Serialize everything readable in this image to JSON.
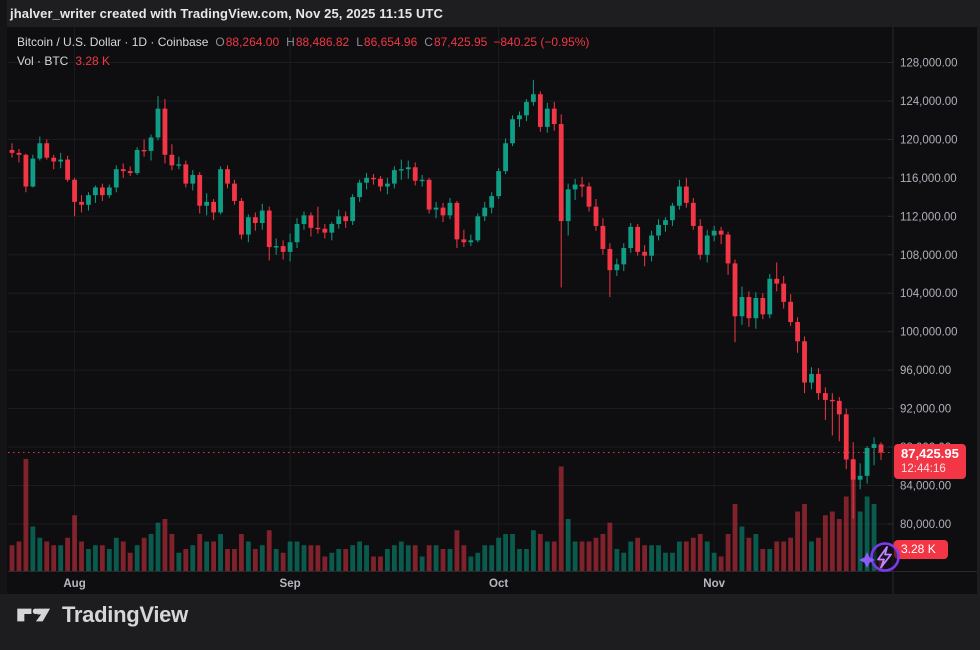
{
  "attribution": "jhalver_writer created with TradingView.com, Nov 25, 2025 11:15 UTC",
  "header": {
    "title": "Bitcoin / U.S. Dollar · 1D · Coinbase",
    "ohlc": [
      {
        "label": "O",
        "value": "88,264.00"
      },
      {
        "label": "H",
        "value": "88,486.82"
      },
      {
        "label": "L",
        "value": "86,654.96"
      },
      {
        "label": "C",
        "value": "87,425.95"
      }
    ],
    "change": "−840.25 (−0.95%)",
    "volume_label": "Vol · BTC",
    "volume_value": "3.28 K"
  },
  "price_scale": {
    "last_price": "87,425.95",
    "countdown": "12:44:16",
    "volume_badge": "3.28 K"
  },
  "time_axis_months": [
    "Aug",
    "Sep",
    "Oct",
    "Nov"
  ],
  "watermark_logo": "TradingView",
  "colors": {
    "up": "#0f9d85",
    "down": "#f23645",
    "vol_up": "rgba(8,153,129,0.55)",
    "vol_down": "rgba(242,54,69,0.5)",
    "grid": "#1c1c1f",
    "separator": "#2a2a2e",
    "axis_text": "#aeb1ba",
    "label_bg": "#f23645",
    "pane_bg": "#0e0e10"
  },
  "chart_data": {
    "type": "candlestick",
    "symbol": "Bitcoin / U.S. Dollar",
    "exchange": "Coinbase",
    "interval": "1D",
    "start_date": "2025-07-23",
    "end_date": "2025-11-25",
    "last_close": 87425.95,
    "y_ticks": [
      128000,
      124000,
      120000,
      116000,
      112000,
      108000,
      104000,
      100000,
      96000,
      92000,
      88000,
      84000,
      80000
    ],
    "month_ticks": [
      {
        "label": "Aug",
        "index": 9
      },
      {
        "label": "Sep",
        "index": 40
      },
      {
        "label": "Oct",
        "index": 70
      },
      {
        "label": "Nov",
        "index": 101
      }
    ],
    "grid": true,
    "volume_unit": "K BTC",
    "columns": [
      "open",
      "high",
      "low",
      "close",
      "volume_k"
    ],
    "candles": [
      [
        118900,
        119600,
        118100,
        118600,
        7
      ],
      [
        118600,
        119000,
        117600,
        118400,
        8
      ],
      [
        118400,
        118500,
        114500,
        115100,
        30
      ],
      [
        115100,
        118400,
        115000,
        118000,
        12
      ],
      [
        118000,
        120300,
        117800,
        119600,
        9
      ],
      [
        119600,
        120000,
        117900,
        118100,
        8
      ],
      [
        118100,
        118400,
        116900,
        117700,
        7
      ],
      [
        117700,
        118600,
        117000,
        117900,
        7
      ],
      [
        117900,
        118300,
        115600,
        115800,
        9
      ],
      [
        115800,
        116000,
        112000,
        113500,
        15
      ],
      [
        113500,
        114200,
        112400,
        113200,
        8
      ],
      [
        113200,
        114500,
        112600,
        114200,
        6
      ],
      [
        114200,
        115200,
        113400,
        115000,
        7
      ],
      [
        115000,
        115400,
        113600,
        114200,
        7
      ],
      [
        114200,
        115300,
        113900,
        115000,
        6
      ],
      [
        115000,
        117300,
        114500,
        116900,
        9
      ],
      [
        116900,
        117500,
        116000,
        116700,
        8
      ],
      [
        116700,
        117200,
        116200,
        116500,
        5
      ],
      [
        116500,
        119200,
        116300,
        118900,
        7
      ],
      [
        118900,
        120000,
        118200,
        118800,
        9
      ],
      [
        118800,
        120500,
        117800,
        120200,
        10
      ],
      [
        120200,
        124500,
        119900,
        123200,
        13
      ],
      [
        123200,
        124200,
        117500,
        118400,
        14
      ],
      [
        118400,
        119500,
        116800,
        117300,
        10
      ],
      [
        117300,
        118200,
        116900,
        117400,
        5
      ],
      [
        117400,
        117800,
        115000,
        115400,
        6
      ],
      [
        115400,
        116800,
        114700,
        116300,
        7
      ],
      [
        116300,
        116600,
        112300,
        113100,
        10
      ],
      [
        113100,
        114400,
        112100,
        113500,
        8
      ],
      [
        113500,
        113800,
        111600,
        112400,
        8
      ],
      [
        112400,
        117200,
        112200,
        116900,
        10
      ],
      [
        116900,
        117300,
        114900,
        115400,
        6
      ],
      [
        115400,
        115800,
        113200,
        113600,
        6
      ],
      [
        113600,
        113900,
        109600,
        110100,
        10
      ],
      [
        110100,
        112200,
        109300,
        111900,
        8
      ],
      [
        111900,
        112400,
        110500,
        111300,
        6
      ],
      [
        111300,
        113300,
        110600,
        112600,
        7
      ],
      [
        112600,
        113000,
        107400,
        108800,
        11
      ],
      [
        108800,
        109700,
        108000,
        108900,
        6
      ],
      [
        108900,
        109500,
        107500,
        108300,
        5
      ],
      [
        108300,
        110200,
        107300,
        109300,
        8
      ],
      [
        109300,
        111800,
        108700,
        111200,
        8
      ],
      [
        111200,
        112500,
        110600,
        112100,
        7
      ],
      [
        112100,
        112400,
        109900,
        110800,
        7
      ],
      [
        110800,
        113000,
        110200,
        110700,
        7
      ],
      [
        110700,
        111200,
        109700,
        110300,
        4
      ],
      [
        110300,
        111400,
        109500,
        111200,
        5
      ],
      [
        111200,
        112700,
        110700,
        112000,
        6
      ],
      [
        112000,
        112500,
        110800,
        111500,
        6
      ],
      [
        111500,
        114300,
        111100,
        114000,
        7
      ],
      [
        114000,
        115800,
        113500,
        115500,
        8
      ],
      [
        115500,
        116500,
        114800,
        116000,
        7
      ],
      [
        116000,
        116400,
        115300,
        115900,
        4
      ],
      [
        115900,
        116200,
        114600,
        115100,
        4
      ],
      [
        115100,
        116000,
        114300,
        115400,
        6
      ],
      [
        115400,
        117200,
        114900,
        116800,
        7
      ],
      [
        116800,
        117900,
        115800,
        116900,
        8
      ],
      [
        116900,
        117800,
        115900,
        117100,
        7
      ],
      [
        117100,
        117600,
        115200,
        115700,
        7
      ],
      [
        115700,
        116300,
        115100,
        115800,
        4
      ],
      [
        115800,
        116000,
        112300,
        112700,
        7
      ],
      [
        112700,
        113500,
        111800,
        112900,
        7
      ],
      [
        112900,
        113400,
        111400,
        112100,
        6
      ],
      [
        112100,
        113900,
        111700,
        113400,
        6
      ],
      [
        113400,
        113600,
        108700,
        109600,
        11
      ],
      [
        109600,
        110600,
        108800,
        109300,
        7
      ],
      [
        109300,
        110100,
        108900,
        109500,
        4
      ],
      [
        109500,
        112300,
        109300,
        112000,
        5
      ],
      [
        112000,
        113500,
        111500,
        112900,
        7
      ],
      [
        112900,
        114500,
        112300,
        114100,
        7
      ],
      [
        114100,
        117000,
        113800,
        116700,
        9
      ],
      [
        116700,
        120100,
        116400,
        119600,
        10
      ],
      [
        119600,
        122500,
        119300,
        122100,
        10
      ],
      [
        122100,
        122900,
        121300,
        122500,
        6
      ],
      [
        122500,
        124200,
        121900,
        123900,
        6
      ],
      [
        123900,
        126200,
        123500,
        124700,
        11
      ],
      [
        124700,
        125000,
        120800,
        121300,
        10
      ],
      [
        121300,
        123800,
        120700,
        123200,
        8
      ],
      [
        123200,
        123900,
        120900,
        121600,
        8
      ],
      [
        121600,
        122600,
        104600,
        111500,
        28
      ],
      [
        111500,
        115400,
        110000,
        114800,
        14
      ],
      [
        114800,
        115900,
        113700,
        115300,
        8
      ],
      [
        115300,
        116100,
        114000,
        115100,
        8
      ],
      [
        115100,
        115500,
        112500,
        113000,
        8
      ],
      [
        113000,
        113800,
        110500,
        111000,
        9
      ],
      [
        111000,
        111800,
        108000,
        108600,
        10
      ],
      [
        108600,
        109200,
        103600,
        106400,
        13
      ],
      [
        106400,
        107600,
        105800,
        107000,
        6
      ],
      [
        107000,
        109200,
        106300,
        108700,
        5
      ],
      [
        108700,
        111300,
        108200,
        110900,
        8
      ],
      [
        110900,
        111200,
        107900,
        108300,
        9
      ],
      [
        108300,
        109000,
        106800,
        107900,
        7
      ],
      [
        107900,
        110500,
        107300,
        110000,
        7
      ],
      [
        110000,
        111700,
        109500,
        111100,
        7
      ],
      [
        111100,
        111900,
        110400,
        111600,
        5
      ],
      [
        111600,
        113400,
        111000,
        113100,
        5
      ],
      [
        113100,
        115800,
        112700,
        115100,
        8
      ],
      [
        115100,
        116000,
        112900,
        113400,
        8
      ],
      [
        113400,
        113900,
        110600,
        111000,
        9
      ],
      [
        111000,
        111700,
        107500,
        108000,
        10
      ],
      [
        108000,
        110600,
        107200,
        110000,
        8
      ],
      [
        110000,
        111000,
        109400,
        110500,
        5
      ],
      [
        110500,
        110900,
        109100,
        110100,
        4
      ],
      [
        110100,
        110400,
        105900,
        107100,
        10
      ],
      [
        107100,
        107500,
        98900,
        101600,
        18
      ],
      [
        101600,
        104700,
        100700,
        103600,
        12
      ],
      [
        103600,
        104200,
        100500,
        101400,
        9
      ],
      [
        101400,
        104100,
        100300,
        103500,
        10
      ],
      [
        103500,
        104000,
        101300,
        101800,
        6
      ],
      [
        101800,
        106000,
        101400,
        105500,
        6
      ],
      [
        105500,
        107200,
        104200,
        105000,
        8
      ],
      [
        105000,
        105800,
        102400,
        103100,
        8
      ],
      [
        103100,
        103900,
        100600,
        101000,
        9
      ],
      [
        101000,
        101500,
        97800,
        99000,
        16
      ],
      [
        99000,
        99500,
        93600,
        94700,
        18
      ],
      [
        94700,
        96300,
        94000,
        95600,
        8
      ],
      [
        95600,
        96200,
        92900,
        93600,
        9
      ],
      [
        93600,
        94200,
        90800,
        92900,
        15
      ],
      [
        92900,
        93600,
        89200,
        92800,
        16
      ],
      [
        92800,
        93200,
        88600,
        91400,
        14
      ],
      [
        91400,
        92000,
        85700,
        86700,
        20
      ],
      [
        86700,
        88500,
        80550,
        84600,
        30
      ],
      [
        84600,
        86300,
        83600,
        85000,
        16
      ],
      [
        85000,
        88100,
        84200,
        87900,
        20
      ],
      [
        87900,
        89000,
        86100,
        88300,
        18
      ],
      [
        88264,
        88486.82,
        86654.96,
        87425.95,
        3.28
      ]
    ]
  }
}
